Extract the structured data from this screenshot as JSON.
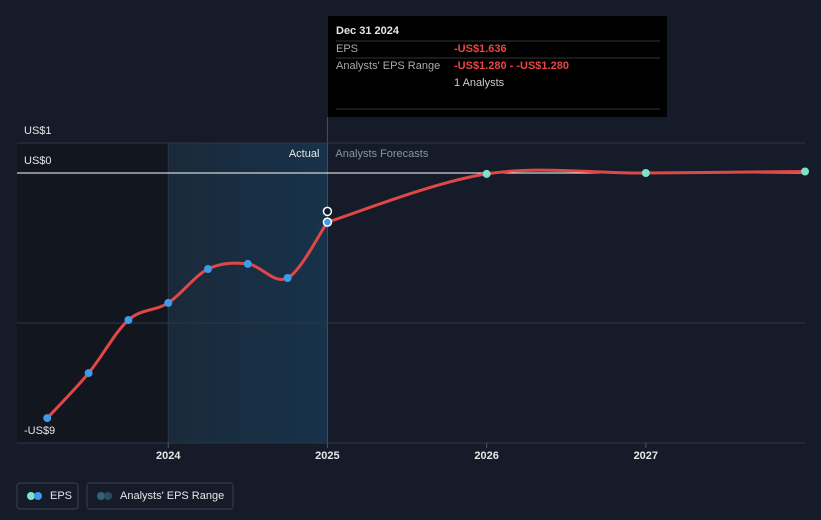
{
  "chart_data": {
    "type": "line",
    "xlim": [
      2023.05,
      2028.0
    ],
    "xticks": [
      2024,
      2025,
      2026,
      2027
    ],
    "ylim": [
      -9,
      1
    ],
    "yticks": [
      {
        "value": 1,
        "label": "US$1"
      },
      {
        "value": 0,
        "label": "US$0"
      },
      {
        "value": -5,
        "label": null
      },
      {
        "value": -9,
        "label": "-US$9"
      }
    ],
    "section_labels": [
      "Actual",
      "Analysts Forecasts"
    ],
    "series": [
      {
        "name": "EPS",
        "color": "#e04848",
        "marker_color": "#3d9be9",
        "x": [
          2023.24,
          2023.5,
          2023.75,
          2024.0,
          2024.25,
          2024.5,
          2024.75,
          2025.0
        ],
        "values": [
          -8.17,
          -6.67,
          -4.9,
          -4.33,
          -3.2,
          -3.03,
          -3.5,
          -1.636
        ]
      },
      {
        "name": "EPS Forecast",
        "color": "#e04848",
        "marker_color": "#7de3c8",
        "x": [
          2026,
          2027,
          2028
        ],
        "values": [
          -0.03,
          0.0,
          0.05
        ]
      }
    ],
    "range": {
      "name": "Analysts' EPS Range",
      "x": [
        2025.0
      ],
      "low": [
        -1.28
      ],
      "high": [
        -1.28
      ]
    },
    "tooltip": {
      "date": "Dec 31 2024",
      "rows": [
        [
          "EPS",
          "-US$1.636"
        ],
        [
          "Analysts' EPS Range",
          "-US$1.280 - -US$1.280"
        ],
        [
          "",
          "1 Analysts"
        ]
      ]
    },
    "legend": [
      "EPS",
      "Analysts' EPS Range"
    ]
  }
}
